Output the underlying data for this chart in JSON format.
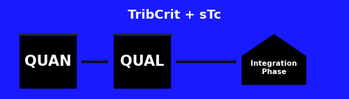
{
  "background_color": "#1a1aff",
  "border_color": "#111111",
  "title": "TribCrit + sTc",
  "title_color": "#ffffff",
  "title_fontsize": 13,
  "box1_label": "QUAN",
  "box2_label": "QUAL",
  "pentagon_label": "Integration\nPhase",
  "box_color": "#000000",
  "text_color": "#ffffff",
  "arrow_color": "#111111",
  "fig_width": 5.0,
  "fig_height": 1.43,
  "outer_bg": "#111111"
}
